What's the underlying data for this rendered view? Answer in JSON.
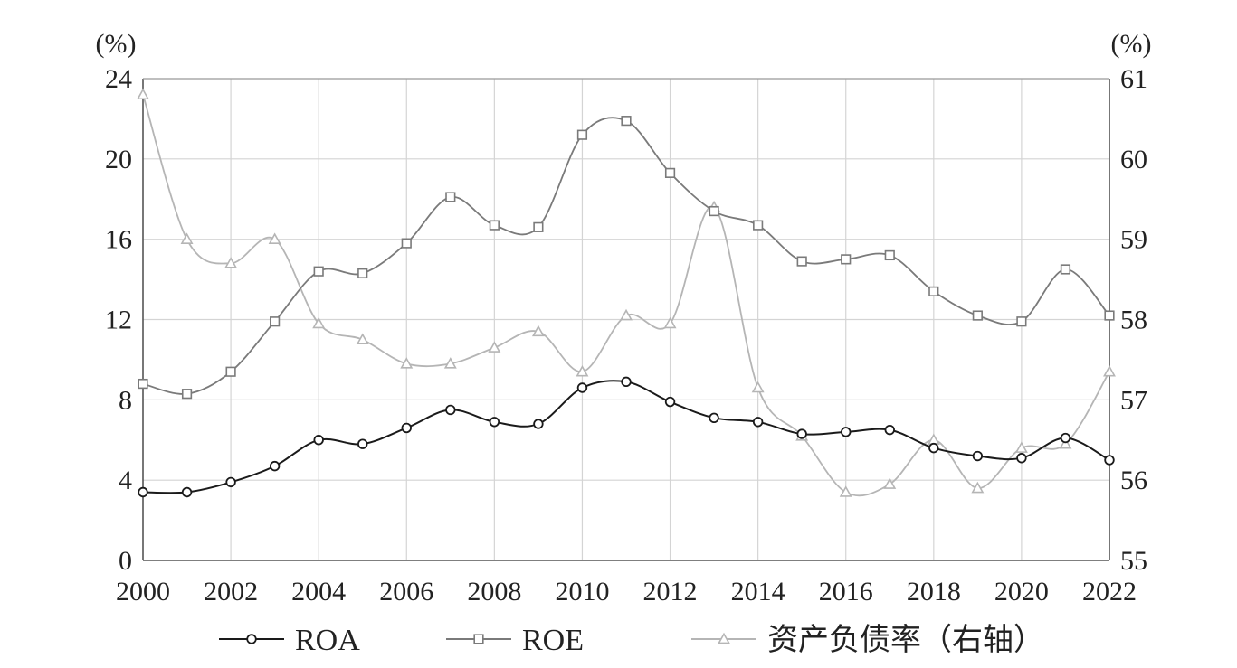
{
  "chart_data": {
    "type": "line",
    "left_unit": "(%)",
    "right_unit": "(%)",
    "x_ticks": [
      "2000",
      "2002",
      "2004",
      "2006",
      "2008",
      "2010",
      "2012",
      "2014",
      "2016",
      "2018",
      "2020",
      "2022"
    ],
    "x": [
      2000,
      2001,
      2002,
      2003,
      2004,
      2005,
      2006,
      2007,
      2008,
      2009,
      2010,
      2011,
      2012,
      2013,
      2014,
      2015,
      2016,
      2017,
      2018,
      2019,
      2020,
      2021,
      2022
    ],
    "xlim": [
      2000,
      2022
    ],
    "left_axis": {
      "ylim": [
        0,
        24
      ],
      "ticks": [
        "0",
        "4",
        "8",
        "12",
        "16",
        "20",
        "24"
      ]
    },
    "right_axis": {
      "ylim": [
        55,
        61
      ],
      "ticks": [
        "55",
        "56",
        "57",
        "58",
        "59",
        "60",
        "61"
      ]
    },
    "grid": true,
    "legend_position": "bottom",
    "series": [
      {
        "name": "ROA",
        "axis": "left",
        "marker": "circle",
        "color": "#1a1a1a",
        "values": [
          3.4,
          3.4,
          3.9,
          4.7,
          6.0,
          5.8,
          6.6,
          7.5,
          6.9,
          6.8,
          8.6,
          8.9,
          7.9,
          7.1,
          6.9,
          6.3,
          6.4,
          6.5,
          5.6,
          5.2,
          5.1,
          6.1,
          5.0
        ]
      },
      {
        "name": "ROE",
        "axis": "left",
        "marker": "square",
        "color": "#7a7a7a",
        "values": [
          8.8,
          8.3,
          9.4,
          11.9,
          14.4,
          14.3,
          15.8,
          18.1,
          16.7,
          16.6,
          21.2,
          21.9,
          19.3,
          17.4,
          16.7,
          14.9,
          15.0,
          15.2,
          13.4,
          12.2,
          11.9,
          14.5,
          12.2
        ]
      },
      {
        "name": "资产负债率（右轴）",
        "axis": "right",
        "marker": "triangle",
        "color": "#b5b5b5",
        "values": [
          60.8,
          59.0,
          58.7,
          59.0,
          57.95,
          57.75,
          57.45,
          57.45,
          57.65,
          57.85,
          57.35,
          58.05,
          57.95,
          59.4,
          57.15,
          56.55,
          55.85,
          55.95,
          56.5,
          55.9,
          56.4,
          56.45,
          57.35
        ]
      }
    ]
  }
}
